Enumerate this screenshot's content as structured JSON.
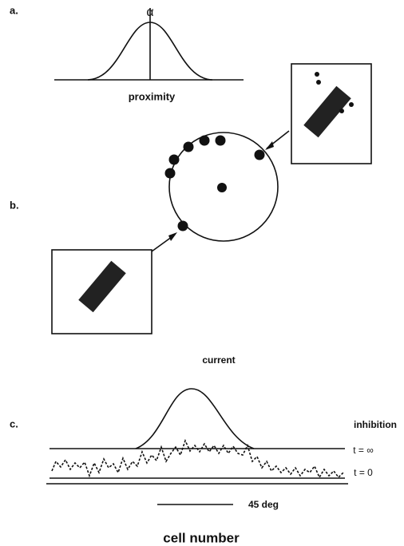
{
  "panel_a": {
    "label": "a.",
    "symbol": "α",
    "axis_label": "proximity"
  },
  "panel_b": {
    "label": "b."
  },
  "panel_c": {
    "label": "c.",
    "current_label": "current",
    "inhibition_label": "inhibition",
    "t_inf_label": "t = ∞",
    "t0_label": "t = 0",
    "scale_label": "45 deg",
    "x_label": "cell number"
  }
}
